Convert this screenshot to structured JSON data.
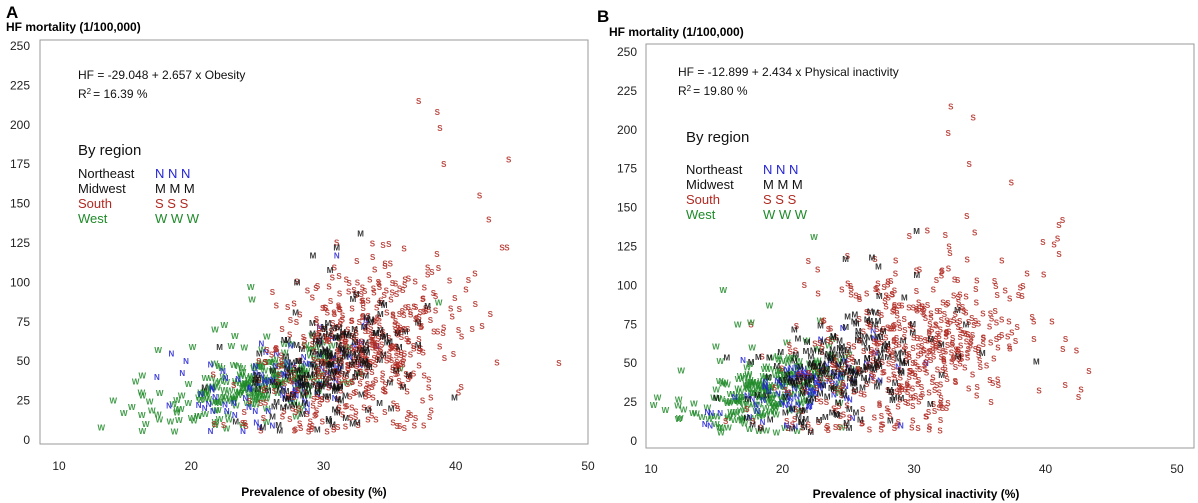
{
  "colors": {
    "Northeast": "#2323d6",
    "Midwest": "#111111",
    "South": "#b02a22",
    "West": "#1e8a28"
  },
  "chart_data": [
    {
      "panel": "A",
      "type": "scatter",
      "ylabel": "HF mortality (1/100,000)",
      "xlabel": "Prevalence of obesity (%)",
      "xlim": [
        10,
        50
      ],
      "ylim": [
        0,
        250
      ],
      "xticks": [
        10,
        20,
        30,
        40,
        50
      ],
      "yticks": [
        0,
        25,
        50,
        75,
        100,
        125,
        150,
        175,
        200,
        225,
        250
      ],
      "equation": "HF = -29.048 + 2.657 x Obesity",
      "r2_prefix": "R",
      "r2_sup": "2",
      "r2_value": "=  16.39 %",
      "legend_title": "By region",
      "legend": [
        {
          "name": "Northeast",
          "marker": "N N N",
          "region": "Northeast"
        },
        {
          "name": "Midwest",
          "marker": "M M M",
          "region": "Midwest"
        },
        {
          "name": "South",
          "marker": "S S S",
          "region": "South"
        },
        {
          "name": "West",
          "marker": "W W W",
          "region": "West"
        }
      ],
      "series": [
        {
          "name": "Northeast",
          "marker": "N",
          "clusters": [
            {
              "mx": 27,
              "my": 38,
              "sx": 3,
              "sy": 12,
              "n": 90
            }
          ]
        },
        {
          "name": "Midwest",
          "marker": "M",
          "clusters": [
            {
              "mx": 30,
              "my": 46,
              "sx": 3,
              "sy": 18,
              "n": 190
            }
          ]
        },
        {
          "name": "South",
          "marker": "S",
          "clusters": [
            {
              "mx": 32.5,
              "my": 56,
              "sx": 3.8,
              "sy": 27,
              "n": 520
            }
          ]
        },
        {
          "name": "West",
          "marker": "W",
          "clusters": [
            {
              "mx": 25,
              "my": 35,
              "sx": 3.6,
              "sy": 11,
              "n": 230
            }
          ]
        }
      ],
      "extra_points": [
        {
          "region": "South",
          "x": 37.2,
          "y": 215
        },
        {
          "region": "South",
          "x": 38.6,
          "y": 208
        },
        {
          "region": "South",
          "x": 38.8,
          "y": 198
        },
        {
          "region": "South",
          "x": 44,
          "y": 178
        },
        {
          "region": "South",
          "x": 39.1,
          "y": 175
        },
        {
          "region": "South",
          "x": 41.8,
          "y": 155
        },
        {
          "region": "South",
          "x": 47.8,
          "y": 49
        },
        {
          "region": "South",
          "x": 42.5,
          "y": 140
        },
        {
          "region": "South",
          "x": 43.5,
          "y": 122
        },
        {
          "region": "South",
          "x": 40.2,
          "y": 30
        },
        {
          "region": "West",
          "x": 13.2,
          "y": 8
        },
        {
          "region": "West",
          "x": 14.1,
          "y": 25
        },
        {
          "region": "West",
          "x": 14.9,
          "y": 17
        },
        {
          "region": "West",
          "x": 15.5,
          "y": 21
        },
        {
          "region": "West",
          "x": 16.3,
          "y": 41
        },
        {
          "region": "West",
          "x": 17.5,
          "y": 57
        },
        {
          "region": "West",
          "x": 21.8,
          "y": 70
        },
        {
          "region": "West",
          "x": 22.5,
          "y": 73
        },
        {
          "region": "West",
          "x": 23.3,
          "y": 66
        },
        {
          "region": "West",
          "x": 24.5,
          "y": 97
        },
        {
          "region": "West",
          "x": 24.6,
          "y": 89
        },
        {
          "region": "West",
          "x": 20.1,
          "y": 59
        },
        {
          "region": "Northeast",
          "x": 17.4,
          "y": 40
        },
        {
          "region": "Northeast",
          "x": 18.5,
          "y": 55
        },
        {
          "region": "Northeast",
          "x": 19.6,
          "y": 50
        },
        {
          "region": "Northeast",
          "x": 31,
          "y": 117
        },
        {
          "region": "Midwest",
          "x": 28,
          "y": 100
        },
        {
          "region": "Midwest",
          "x": 29.2,
          "y": 117
        },
        {
          "region": "Midwest",
          "x": 30.5,
          "y": 108
        },
        {
          "region": "Midwest",
          "x": 31,
          "y": 122
        },
        {
          "region": "Midwest",
          "x": 32.8,
          "y": 131
        },
        {
          "region": "Midwest",
          "x": 34.3,
          "y": 80
        },
        {
          "region": "Midwest",
          "x": 39.9,
          "y": 27
        }
      ]
    },
    {
      "panel": "B",
      "type": "scatter",
      "ylabel": "HF mortality (1/100,000)",
      "xlabel": "Prevalence of physical inactivity (%)",
      "xlim": [
        10,
        50
      ],
      "ylim": [
        0,
        250
      ],
      "xticks": [
        10,
        20,
        30,
        40,
        50
      ],
      "yticks": [
        0,
        25,
        50,
        75,
        100,
        125,
        150,
        175,
        200,
        225,
        250
      ],
      "equation": "HF = -12.899 + 2.434 x Physical inactivity",
      "r2_prefix": "R",
      "r2_sup": "2",
      "r2_value": "=  19.80 %",
      "legend_title": "By region",
      "legend": [
        {
          "name": "Northeast",
          "marker": "N N N",
          "region": "Northeast"
        },
        {
          "name": "Midwest",
          "marker": "M M M",
          "region": "Midwest"
        },
        {
          "name": "South",
          "marker": "S S S",
          "region": "South"
        },
        {
          "name": "West",
          "marker": "W W W",
          "region": "West"
        }
      ],
      "series": [
        {
          "name": "Northeast",
          "marker": "N",
          "clusters": [
            {
              "mx": 22,
              "my": 35,
              "sx": 3,
              "sy": 11,
              "n": 90
            }
          ]
        },
        {
          "name": "Midwest",
          "marker": "M",
          "clusters": [
            {
              "mx": 24.5,
              "my": 45,
              "sx": 3.6,
              "sy": 18,
              "n": 190
            }
          ]
        },
        {
          "name": "South",
          "marker": "S",
          "clusters": [
            {
              "mx": 29.5,
              "my": 58,
              "sx": 4.6,
              "sy": 27,
              "n": 520
            }
          ]
        },
        {
          "name": "West",
          "marker": "W",
          "clusters": [
            {
              "mx": 19,
              "my": 33,
              "sx": 3.2,
              "sy": 11,
              "n": 230
            }
          ]
        }
      ],
      "extra_points": [
        {
          "region": "South",
          "x": 32.8,
          "y": 215
        },
        {
          "region": "South",
          "x": 34.5,
          "y": 208
        },
        {
          "region": "South",
          "x": 32.6,
          "y": 198
        },
        {
          "region": "South",
          "x": 34.2,
          "y": 178
        },
        {
          "region": "South",
          "x": 37.4,
          "y": 166
        },
        {
          "region": "South",
          "x": 41.3,
          "y": 142
        },
        {
          "region": "South",
          "x": 43.3,
          "y": 45
        },
        {
          "region": "South",
          "x": 41.5,
          "y": 36
        },
        {
          "region": "South",
          "x": 42.7,
          "y": 33
        },
        {
          "region": "South",
          "x": 39.8,
          "y": 128
        },
        {
          "region": "West",
          "x": 10.2,
          "y": 23
        },
        {
          "region": "West",
          "x": 11.1,
          "y": 20
        },
        {
          "region": "West",
          "x": 12.1,
          "y": 14
        },
        {
          "region": "West",
          "x": 13.2,
          "y": 18
        },
        {
          "region": "West",
          "x": 15.5,
          "y": 97
        },
        {
          "region": "West",
          "x": 16.6,
          "y": 75
        },
        {
          "region": "West",
          "x": 17.6,
          "y": 76
        },
        {
          "region": "West",
          "x": 19,
          "y": 87
        },
        {
          "region": "West",
          "x": 22.4,
          "y": 131
        },
        {
          "region": "West",
          "x": 10.5,
          "y": 28
        },
        {
          "region": "Northeast",
          "x": 14.5,
          "y": 10
        },
        {
          "region": "Northeast",
          "x": 17,
          "y": 52
        },
        {
          "region": "Northeast",
          "x": 20.3,
          "y": 10
        },
        {
          "region": "Northeast",
          "x": 22,
          "y": 22
        },
        {
          "region": "Northeast",
          "x": 29,
          "y": 10
        },
        {
          "region": "Midwest",
          "x": 24.8,
          "y": 117
        },
        {
          "region": "Midwest",
          "x": 26.8,
          "y": 118
        },
        {
          "region": "Midwest",
          "x": 30.2,
          "y": 135
        },
        {
          "region": "Midwest",
          "x": 27.3,
          "y": 112
        },
        {
          "region": "Midwest",
          "x": 39.3,
          "y": 51
        },
        {
          "region": "Midwest",
          "x": 28.5,
          "y": 28
        }
      ]
    }
  ]
}
